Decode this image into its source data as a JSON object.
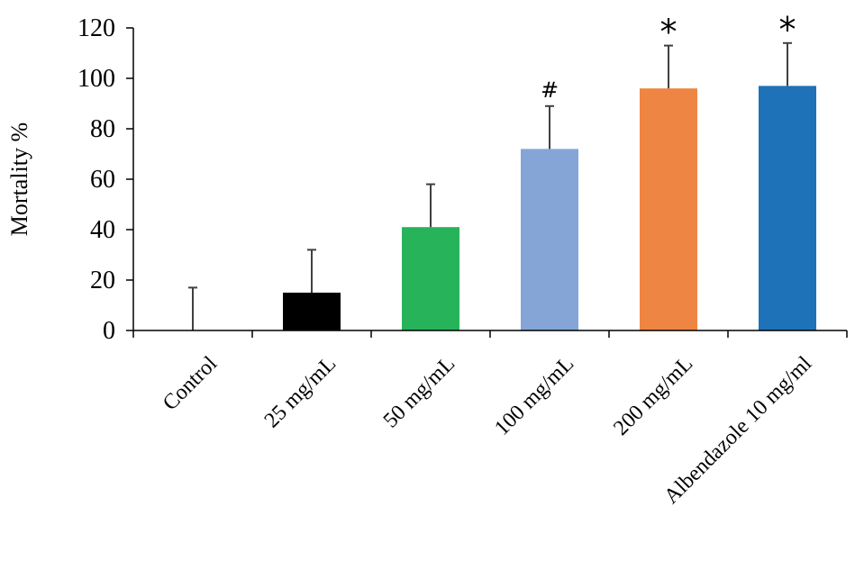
{
  "chart_data": {
    "type": "bar",
    "title": "",
    "xlabel": "",
    "ylabel": "Mortality %",
    "ylim": [
      0,
      120
    ],
    "yticks": [
      0,
      20,
      40,
      60,
      80,
      100,
      120
    ],
    "grid": false,
    "legend": "none",
    "categories": [
      "Control",
      "25 mg/mL",
      "50 mg/mL",
      "100 mg/mL",
      "200 mg/mL",
      "Albendazole 10 mg/ml"
    ],
    "values": [
      0,
      15,
      41,
      72,
      96,
      97
    ],
    "errors": [
      17,
      17,
      17,
      17,
      17,
      17
    ],
    "colors": [
      "#000000",
      "#000000",
      "#27b35a",
      "#84a5d6",
      "#ef8543",
      "#1d72b8"
    ],
    "annotations": [
      "",
      "",
      "",
      "#",
      "*",
      "*"
    ]
  }
}
